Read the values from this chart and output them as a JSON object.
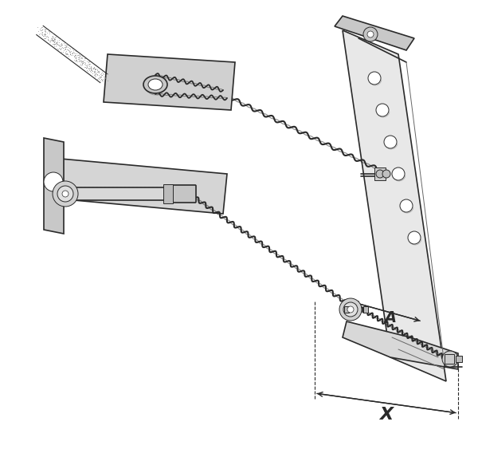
{
  "bg_color": "#ffffff",
  "line_color": "#2a2a2a",
  "light_gray": "#cccccc",
  "mid_gray": "#888888",
  "dark_gray": "#444444",
  "title": "",
  "label_X": "X",
  "label_A": "A",
  "figsize": [
    6.0,
    5.78
  ],
  "dpi": 100
}
